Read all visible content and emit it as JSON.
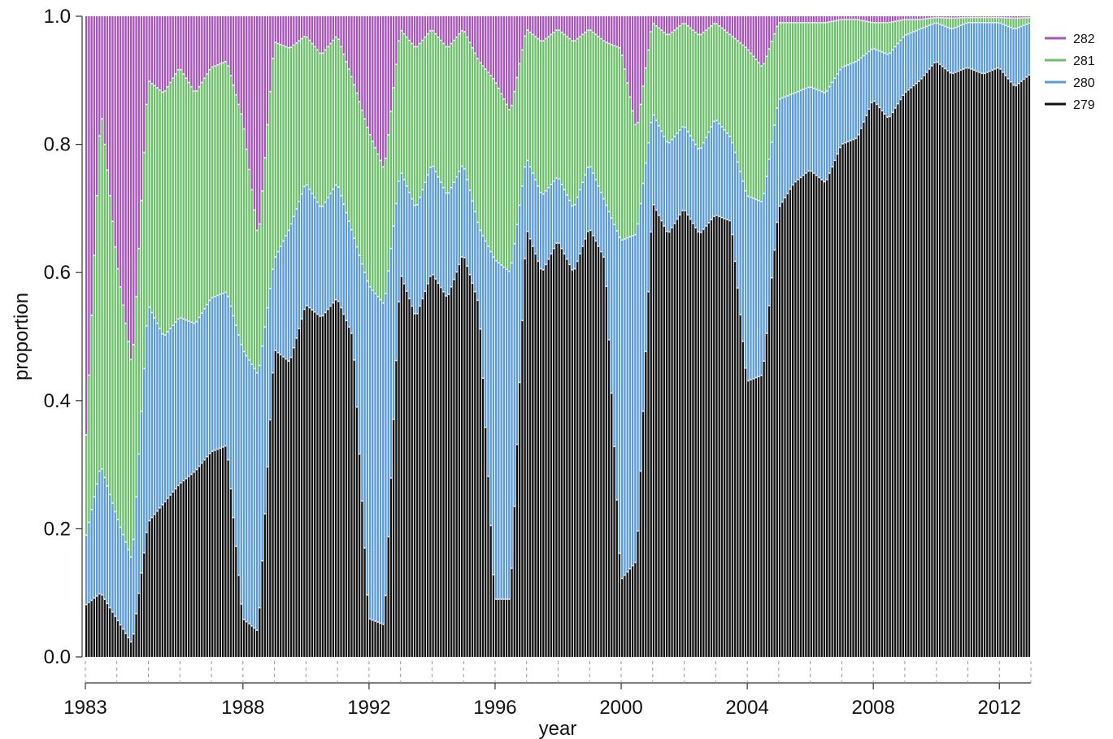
{
  "chart_data": {
    "type": "bar",
    "stacked": true,
    "normalized": true,
    "title": "",
    "xlabel": "year",
    "ylabel": "proportion",
    "ylim": [
      0,
      1
    ],
    "xlim": [
      1983,
      2013
    ],
    "grid": false,
    "legend_position": "top-right",
    "yticks": [
      "0.0",
      "0.2",
      "0.4",
      "0.6",
      "0.8",
      "1.0"
    ],
    "xtick_labels": [
      "1983",
      "1988",
      "1992",
      "1996",
      "2000",
      "2004",
      "2008",
      "2012"
    ],
    "series": [
      {
        "name": "279",
        "color": "#111111"
      },
      {
        "name": "280",
        "color": "#5b9bd5"
      },
      {
        "name": "281",
        "color": "#6cc06a"
      },
      {
        "name": "282",
        "color": "#a654b8"
      }
    ],
    "legend_order": [
      "282",
      "281",
      "280",
      "279"
    ],
    "x": [
      1983.0,
      1983.5,
      1984.0,
      1984.5,
      1985.0,
      1985.5,
      1986.0,
      1986.5,
      1987.0,
      1987.5,
      1988.0,
      1988.5,
      1989.0,
      1989.5,
      1990.0,
      1990.5,
      1991.0,
      1991.5,
      1992.0,
      1992.5,
      1993.0,
      1993.5,
      1994.0,
      1994.5,
      1995.0,
      1995.5,
      1996.0,
      1996.5,
      1997.0,
      1997.5,
      1998.0,
      1998.5,
      1999.0,
      1999.5,
      2000.0,
      2000.5,
      2001.0,
      2001.5,
      2002.0,
      2002.5,
      2003.0,
      2003.5,
      2004.0,
      2004.5,
      2005.0,
      2005.5,
      2006.0,
      2006.5,
      2007.0,
      2007.5,
      2008.0,
      2008.5,
      2009.0,
      2009.5,
      2010.0,
      2010.5,
      2011.0,
      2011.5,
      2012.0,
      2012.5,
      2013.0
    ],
    "cum_279": [
      0.08,
      0.1,
      0.06,
      0.02,
      0.21,
      0.24,
      0.27,
      0.29,
      0.32,
      0.33,
      0.06,
      0.04,
      0.48,
      0.46,
      0.55,
      0.53,
      0.56,
      0.5,
      0.06,
      0.05,
      0.6,
      0.53,
      0.6,
      0.56,
      0.63,
      0.55,
      0.09,
      0.09,
      0.67,
      0.6,
      0.65,
      0.6,
      0.67,
      0.62,
      0.12,
      0.15,
      0.71,
      0.66,
      0.7,
      0.66,
      0.69,
      0.68,
      0.43,
      0.44,
      0.7,
      0.74,
      0.76,
      0.74,
      0.8,
      0.81,
      0.87,
      0.84,
      0.88,
      0.9,
      0.93,
      0.91,
      0.92,
      0.91,
      0.92,
      0.89,
      0.91
    ],
    "cum_280": [
      0.18,
      0.3,
      0.22,
      0.15,
      0.55,
      0.5,
      0.53,
      0.52,
      0.56,
      0.57,
      0.48,
      0.44,
      0.62,
      0.67,
      0.74,
      0.7,
      0.74,
      0.66,
      0.58,
      0.55,
      0.76,
      0.7,
      0.77,
      0.72,
      0.77,
      0.67,
      0.62,
      0.6,
      0.78,
      0.72,
      0.75,
      0.7,
      0.77,
      0.71,
      0.65,
      0.66,
      0.85,
      0.8,
      0.83,
      0.79,
      0.84,
      0.81,
      0.72,
      0.71,
      0.87,
      0.88,
      0.89,
      0.88,
      0.92,
      0.93,
      0.95,
      0.94,
      0.97,
      0.98,
      0.99,
      0.98,
      0.99,
      0.99,
      0.99,
      0.98,
      0.99
    ],
    "cum_281": [
      0.3,
      0.86,
      0.62,
      0.45,
      0.9,
      0.88,
      0.92,
      0.88,
      0.92,
      0.93,
      0.84,
      0.65,
      0.96,
      0.95,
      0.97,
      0.94,
      0.97,
      0.9,
      0.82,
      0.76,
      0.98,
      0.95,
      0.98,
      0.95,
      0.98,
      0.93,
      0.9,
      0.85,
      0.98,
      0.96,
      0.98,
      0.96,
      0.98,
      0.96,
      0.95,
      0.82,
      0.99,
      0.97,
      0.99,
      0.97,
      0.99,
      0.97,
      0.95,
      0.92,
      0.99,
      0.99,
      0.99,
      0.99,
      0.995,
      0.995,
      0.99,
      0.99,
      0.995,
      0.995,
      0.998,
      0.997,
      0.998,
      0.998,
      0.998,
      0.997,
      0.998
    ]
  }
}
